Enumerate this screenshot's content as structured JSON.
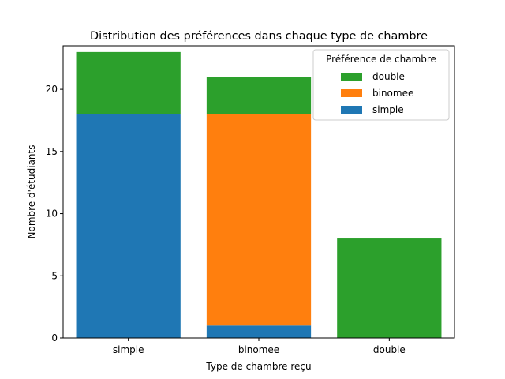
{
  "chart_data": {
    "type": "bar",
    "stacked": true,
    "title": "Distribution des préférences dans chaque type de chambre",
    "xlabel": "Type de chambre reçu",
    "ylabel": "Nombre d'étudiants",
    "categories": [
      "simple",
      "binomee",
      "double"
    ],
    "ylim": [
      0,
      23.5
    ],
    "yticks": [
      0,
      5,
      10,
      15,
      20
    ],
    "grid": false,
    "legend": {
      "title": "Préférence de chambre",
      "placement": "top-right",
      "order": [
        "double",
        "binomee",
        "simple"
      ]
    },
    "series": [
      {
        "name": "simple",
        "color": "#1f77b4",
        "values": [
          18,
          1,
          0
        ]
      },
      {
        "name": "binomee",
        "color": "#ff7f0e",
        "values": [
          0,
          17,
          0
        ]
      },
      {
        "name": "double",
        "color": "#2ca02c",
        "values": [
          5,
          3,
          8
        ]
      }
    ]
  }
}
